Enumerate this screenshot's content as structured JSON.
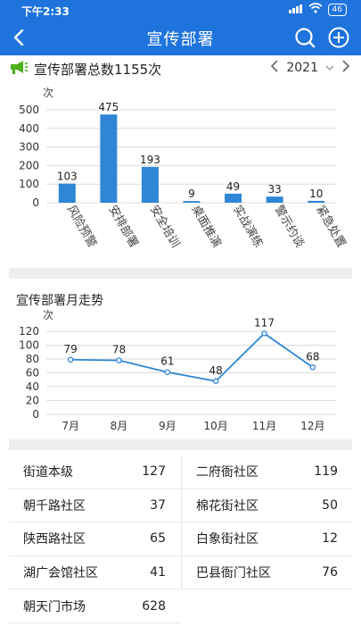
{
  "status_bar": {
    "time": "下午2:33",
    "battery": "46"
  },
  "nav": {
    "title": "宣传部署"
  },
  "section1": {
    "title": "宣传部署总数1155次",
    "year": "2021",
    "colors": {
      "bar": "#2f86d6",
      "icon": "#4caf1f"
    }
  },
  "section2": {
    "title": "宣传部署月走势"
  },
  "stats": {
    "left": [
      {
        "name": "街道本级",
        "value": "127"
      },
      {
        "name": "朝千路社区",
        "value": "37"
      },
      {
        "name": "陕西路社区",
        "value": "65"
      },
      {
        "name": "湖广会馆社区",
        "value": "41"
      },
      {
        "name": "朝天门市场",
        "value": "628"
      }
    ],
    "right": [
      {
        "name": "二府衙社区",
        "value": "119"
      },
      {
        "name": "棉花街社区",
        "value": "50"
      },
      {
        "name": "白象街社区",
        "value": "12"
      },
      {
        "name": "巴县衙门社区",
        "value": "76"
      }
    ]
  },
  "chart_data": [
    {
      "type": "bar",
      "ylabel": "次",
      "ylim": [
        0,
        500
      ],
      "yticks": [
        0,
        100,
        200,
        300,
        400,
        500
      ],
      "categories": [
        "风险预警",
        "安排部署",
        "安全培训",
        "桌面推演",
        "实战演练",
        "警示约谈",
        "紧急处置"
      ],
      "values": [
        103,
        475,
        193,
        9,
        49,
        33,
        10
      ],
      "grid": true
    },
    {
      "type": "line",
      "ylabel": "次",
      "ylim": [
        0,
        120
      ],
      "yticks": [
        0,
        20,
        40,
        60,
        80,
        100,
        120
      ],
      "categories": [
        "7月",
        "8月",
        "9月",
        "10月",
        "11月",
        "12月"
      ],
      "values": [
        79,
        78,
        61,
        48,
        117,
        68
      ],
      "grid": true
    }
  ]
}
